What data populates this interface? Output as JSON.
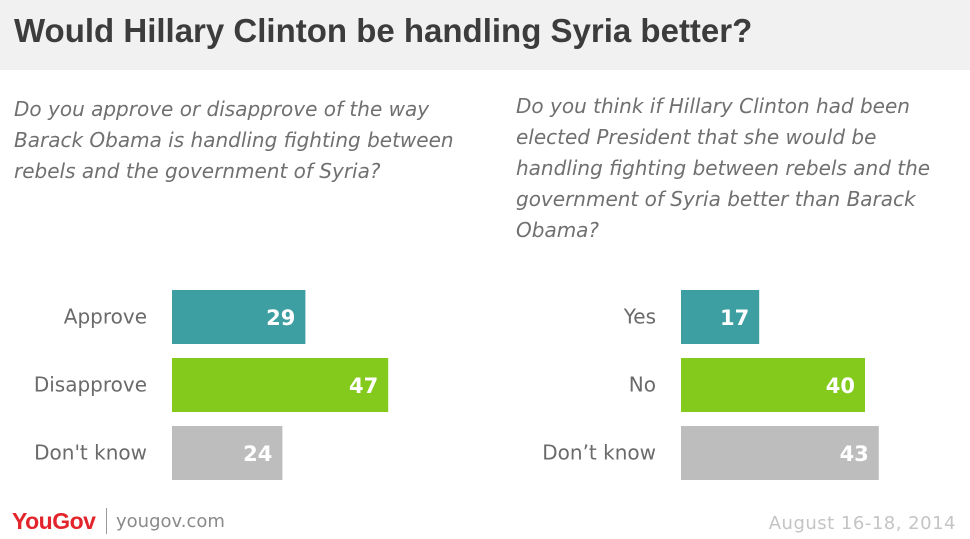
{
  "title": "Would Hillary Clinton be handling Syria better?",
  "colors": {
    "teal": "#3e9fa3",
    "green": "#84ca1c",
    "gray": "#bdbdbd"
  },
  "chart_data": [
    {
      "type": "bar",
      "orientation": "horizontal",
      "title": "Do you approve or disapprove of the way Barack Obama is handling fighting between rebels and the government of Syria?",
      "categories": [
        "Approve",
        "Disapprove",
        "Don't know"
      ],
      "values": [
        29,
        47,
        24
      ],
      "bar_colors": [
        "#3e9fa3",
        "#84ca1c",
        "#bdbdbd"
      ],
      "value_labels": [
        "29",
        "47",
        "24"
      ],
      "xlim": [
        0,
        100
      ],
      "grid": false,
      "legend": "none"
    },
    {
      "type": "bar",
      "orientation": "horizontal",
      "title": "Do you think if Hillary Clinton had been elected President that she would be handling fighting between rebels and the government of Syria better than Barack Obama?",
      "categories": [
        "Yes",
        "No",
        "Don’t know"
      ],
      "values": [
        17,
        40,
        43
      ],
      "bar_colors": [
        "#3e9fa3",
        "#84ca1c",
        "#bdbdbd"
      ],
      "value_labels": [
        "17",
        "40",
        "43"
      ],
      "xlim": [
        0,
        100
      ],
      "grid": false,
      "legend": "none"
    }
  ],
  "footer": {
    "logo": "YouGov",
    "url": "yougov.com",
    "date": "August 16-18, 2014"
  }
}
